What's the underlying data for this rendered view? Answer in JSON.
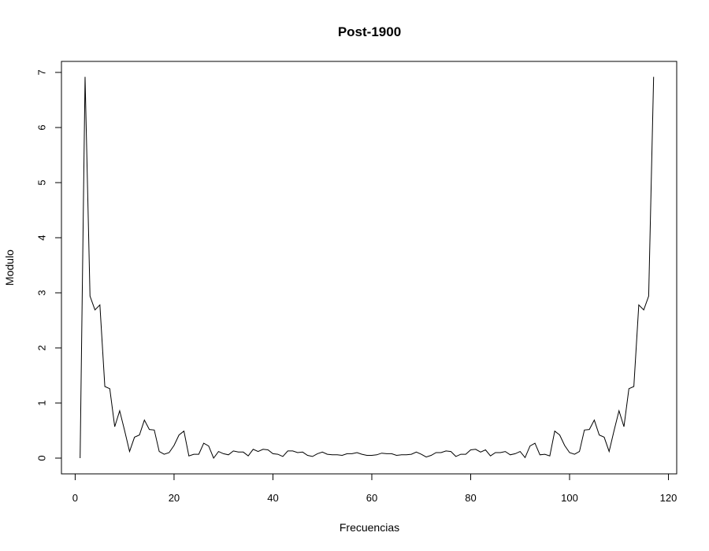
{
  "chart_data": {
    "type": "line",
    "title": "Post-1900",
    "xlabel": "Frecuencias",
    "ylabel": "Modulo",
    "xlim": [
      0,
      120
    ],
    "ylim": [
      0,
      7
    ],
    "x_ticks": [
      0,
      20,
      40,
      60,
      80,
      100,
      120
    ],
    "y_ticks": [
      0,
      1,
      2,
      3,
      4,
      5,
      6,
      7
    ],
    "grid": false,
    "legend": "none",
    "line_color": "#000000",
    "series": [
      {
        "x": [
          1,
          2,
          3,
          4,
          5,
          6,
          7,
          8,
          9,
          10,
          11,
          12,
          13,
          14,
          15,
          16,
          17,
          18,
          19,
          20,
          21,
          22,
          23,
          24,
          25,
          26,
          27,
          28,
          29,
          30,
          31,
          32,
          33,
          34,
          35,
          36,
          37,
          38,
          39,
          40,
          41,
          42,
          43,
          44,
          45,
          46,
          47,
          48,
          49,
          50,
          51,
          52,
          53,
          54,
          55,
          56,
          57,
          58,
          59,
          60,
          61,
          62,
          63,
          64,
          65,
          66,
          67,
          68,
          69,
          70,
          71,
          72,
          73,
          74,
          75,
          76,
          77,
          78,
          79,
          80,
          81,
          82,
          83,
          84,
          85,
          86,
          87,
          88,
          89,
          90,
          91,
          92,
          93,
          94,
          95,
          96,
          97,
          98,
          99,
          100,
          101,
          102,
          103,
          104,
          105,
          106,
          107,
          108,
          109,
          110,
          111,
          112,
          113,
          114,
          115,
          116,
          117
        ],
        "values": [
          0.0,
          6.92,
          2.94,
          2.69,
          2.78,
          1.3,
          1.26,
          0.57,
          0.86,
          0.5,
          0.12,
          0.38,
          0.42,
          0.69,
          0.52,
          0.51,
          0.12,
          0.07,
          0.1,
          0.23,
          0.42,
          0.49,
          0.04,
          0.07,
          0.07,
          0.27,
          0.22,
          0.0,
          0.12,
          0.08,
          0.06,
          0.13,
          0.11,
          0.11,
          0.04,
          0.16,
          0.12,
          0.16,
          0.15,
          0.08,
          0.07,
          0.03,
          0.13,
          0.13,
          0.1,
          0.11,
          0.05,
          0.03,
          0.08,
          0.11,
          0.07,
          0.06,
          0.06,
          0.05,
          0.08,
          0.08,
          0.1,
          0.07,
          0.05,
          0.05,
          0.06,
          0.09,
          0.08,
          0.08,
          0.05,
          0.06,
          0.06,
          0.07,
          0.11,
          0.07,
          0.02,
          0.05,
          0.1,
          0.1,
          0.13,
          0.12,
          0.03,
          0.07,
          0.07,
          0.15,
          0.16,
          0.11,
          0.15,
          0.04,
          0.1,
          0.1,
          0.12,
          0.06,
          0.08,
          0.12,
          0.01,
          0.22,
          0.27,
          0.06,
          0.07,
          0.04,
          0.49,
          0.42,
          0.23,
          0.1,
          0.07,
          0.12,
          0.51,
          0.52,
          0.69,
          0.42,
          0.38,
          0.12,
          0.5,
          0.86,
          0.57,
          1.26,
          1.3,
          2.78,
          2.69,
          2.94,
          6.92
        ]
      }
    ]
  }
}
